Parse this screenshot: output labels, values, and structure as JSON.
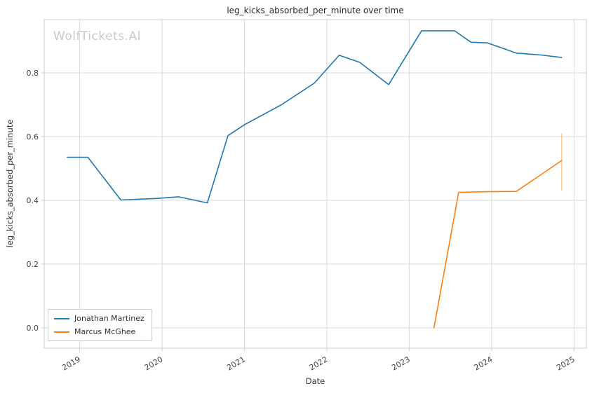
{
  "watermark": "WolfTickets.AI",
  "chart_data": {
    "type": "line",
    "title": "leg_kicks_absorbed_per_minute over time",
    "xlabel": "Date",
    "ylabel": "leg_kicks_absorbed_per_minute",
    "grid": true,
    "legend_position": "lower left",
    "xlim": [
      2018.57,
      2025.15
    ],
    "ylim": [
      -0.064,
      0.967
    ],
    "xticks": [
      {
        "v": 2019,
        "label": "2019"
      },
      {
        "v": 2020,
        "label": "2020"
      },
      {
        "v": 2021,
        "label": "2021"
      },
      {
        "v": 2022,
        "label": "2022"
      },
      {
        "v": 2023,
        "label": "2023"
      },
      {
        "v": 2024,
        "label": "2024"
      },
      {
        "v": 2025,
        "label": "2025"
      }
    ],
    "yticks": [
      {
        "v": 0.0,
        "label": "0.0"
      },
      {
        "v": 0.2,
        "label": "0.2"
      },
      {
        "v": 0.4,
        "label": "0.4"
      },
      {
        "v": 0.6,
        "label": "0.6"
      },
      {
        "v": 0.8,
        "label": "0.8"
      }
    ],
    "series": [
      {
        "name": "Jonathan Martinez",
        "color": "#1f77b4",
        "x": [
          2018.85,
          2019.1,
          2019.5,
          2019.95,
          2020.2,
          2020.55,
          2020.8,
          2021.0,
          2021.45,
          2021.85,
          2022.15,
          2022.4,
          2022.75,
          2023.15,
          2023.55,
          2023.75,
          2023.95,
          2024.3,
          2024.6,
          2024.85
        ],
        "y": [
          0.535,
          0.535,
          0.401,
          0.406,
          0.411,
          0.392,
          0.603,
          0.637,
          0.7,
          0.768,
          0.855,
          0.833,
          0.763,
          0.932,
          0.932,
          0.896,
          0.894,
          0.862,
          0.856,
          0.848
        ]
      },
      {
        "name": "Marcus McGhee",
        "color": "#ff7f0e",
        "x": [
          2023.3,
          2023.6,
          2023.95,
          2024.3,
          2024.85
        ],
        "y": [
          0.0,
          0.425,
          0.427,
          0.428,
          0.525
        ]
      }
    ],
    "error_bar": {
      "x": 2024.85,
      "y_low": 0.43,
      "y_high": 0.61,
      "color": "#ff7f0e",
      "opacity": 0.4
    },
    "colors": {
      "grid": "#d9d9d9",
      "spine": "#cccccc",
      "tick_text": "#444444",
      "title_text": "#262626",
      "watermark": "#c9c9c9"
    }
  }
}
